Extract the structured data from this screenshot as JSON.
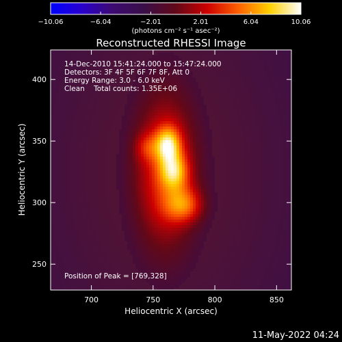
{
  "chart_data": {
    "type": "heatmap",
    "title": "Reconstructed RHESSI Image",
    "xlabel": "Heliocentric X (arcsec)",
    "ylabel": "Heliocentric Y (arcsec)",
    "xlim": [
      667,
      862
    ],
    "ylim": [
      229,
      424
    ],
    "xticks": [
      700,
      750,
      800,
      850
    ],
    "yticks": [
      250,
      300,
      350,
      400
    ],
    "colorbar": {
      "range": [
        -10.06,
        10.06
      ],
      "tick_values": [
        -10.06,
        -6.04,
        -2.01,
        2.01,
        6.04,
        10.06
      ],
      "tick_labels": [
        "−10.06",
        "−6.04",
        "−2.01",
        "2.01",
        "6.04",
        "10.06"
      ],
      "unit_label": "(photons cm⁻² s⁻¹ asec⁻²)"
    },
    "info_lines": [
      "14-Dec-2010 15:41:24.000 to 15:47:24.000",
      "Detectors: 3F 4F 5F 6F 7F 8F, Att 0",
      "Energy Range: 3.0 - 6.0 keV",
      "Clean    Total counts: 1.35E+06"
    ],
    "peak_text": "Position of Peak = [769,328]",
    "peak": [
      769,
      328
    ],
    "sources": [
      {
        "x": 760,
        "y": 325,
        "sx": 19,
        "sy": 47,
        "amp": 0.5
      },
      {
        "x": 762,
        "y": 347,
        "sx": 7,
        "sy": 10,
        "amp": 0.55
      },
      {
        "x": 767,
        "y": 325,
        "sx": 8,
        "sy": 10,
        "amp": 0.45
      },
      {
        "x": 775,
        "y": 298,
        "sx": 11,
        "sy": 10,
        "amp": 0.4
      },
      {
        "x": 745,
        "y": 345,
        "sx": 7,
        "sy": 8,
        "amp": 0.2
      }
    ],
    "background_level": -2.5,
    "colors": {
      "colorbar_stops": [
        "#0000ff",
        "#2a00cc",
        "#3d0a70",
        "#3a0f48",
        "#620818",
        "#cc0000",
        "#ff6000",
        "#ffd000",
        "#ffffff"
      ],
      "image_stops": [
        "#3a0f48",
        "#620818",
        "#cc0000",
        "#ff6000",
        "#ffd000",
        "#ffffff"
      ],
      "background_edge": "#3a0f48",
      "background_center": "#58142e"
    }
  },
  "footer": {
    "timestamp": "11-May-2022 04:24"
  }
}
